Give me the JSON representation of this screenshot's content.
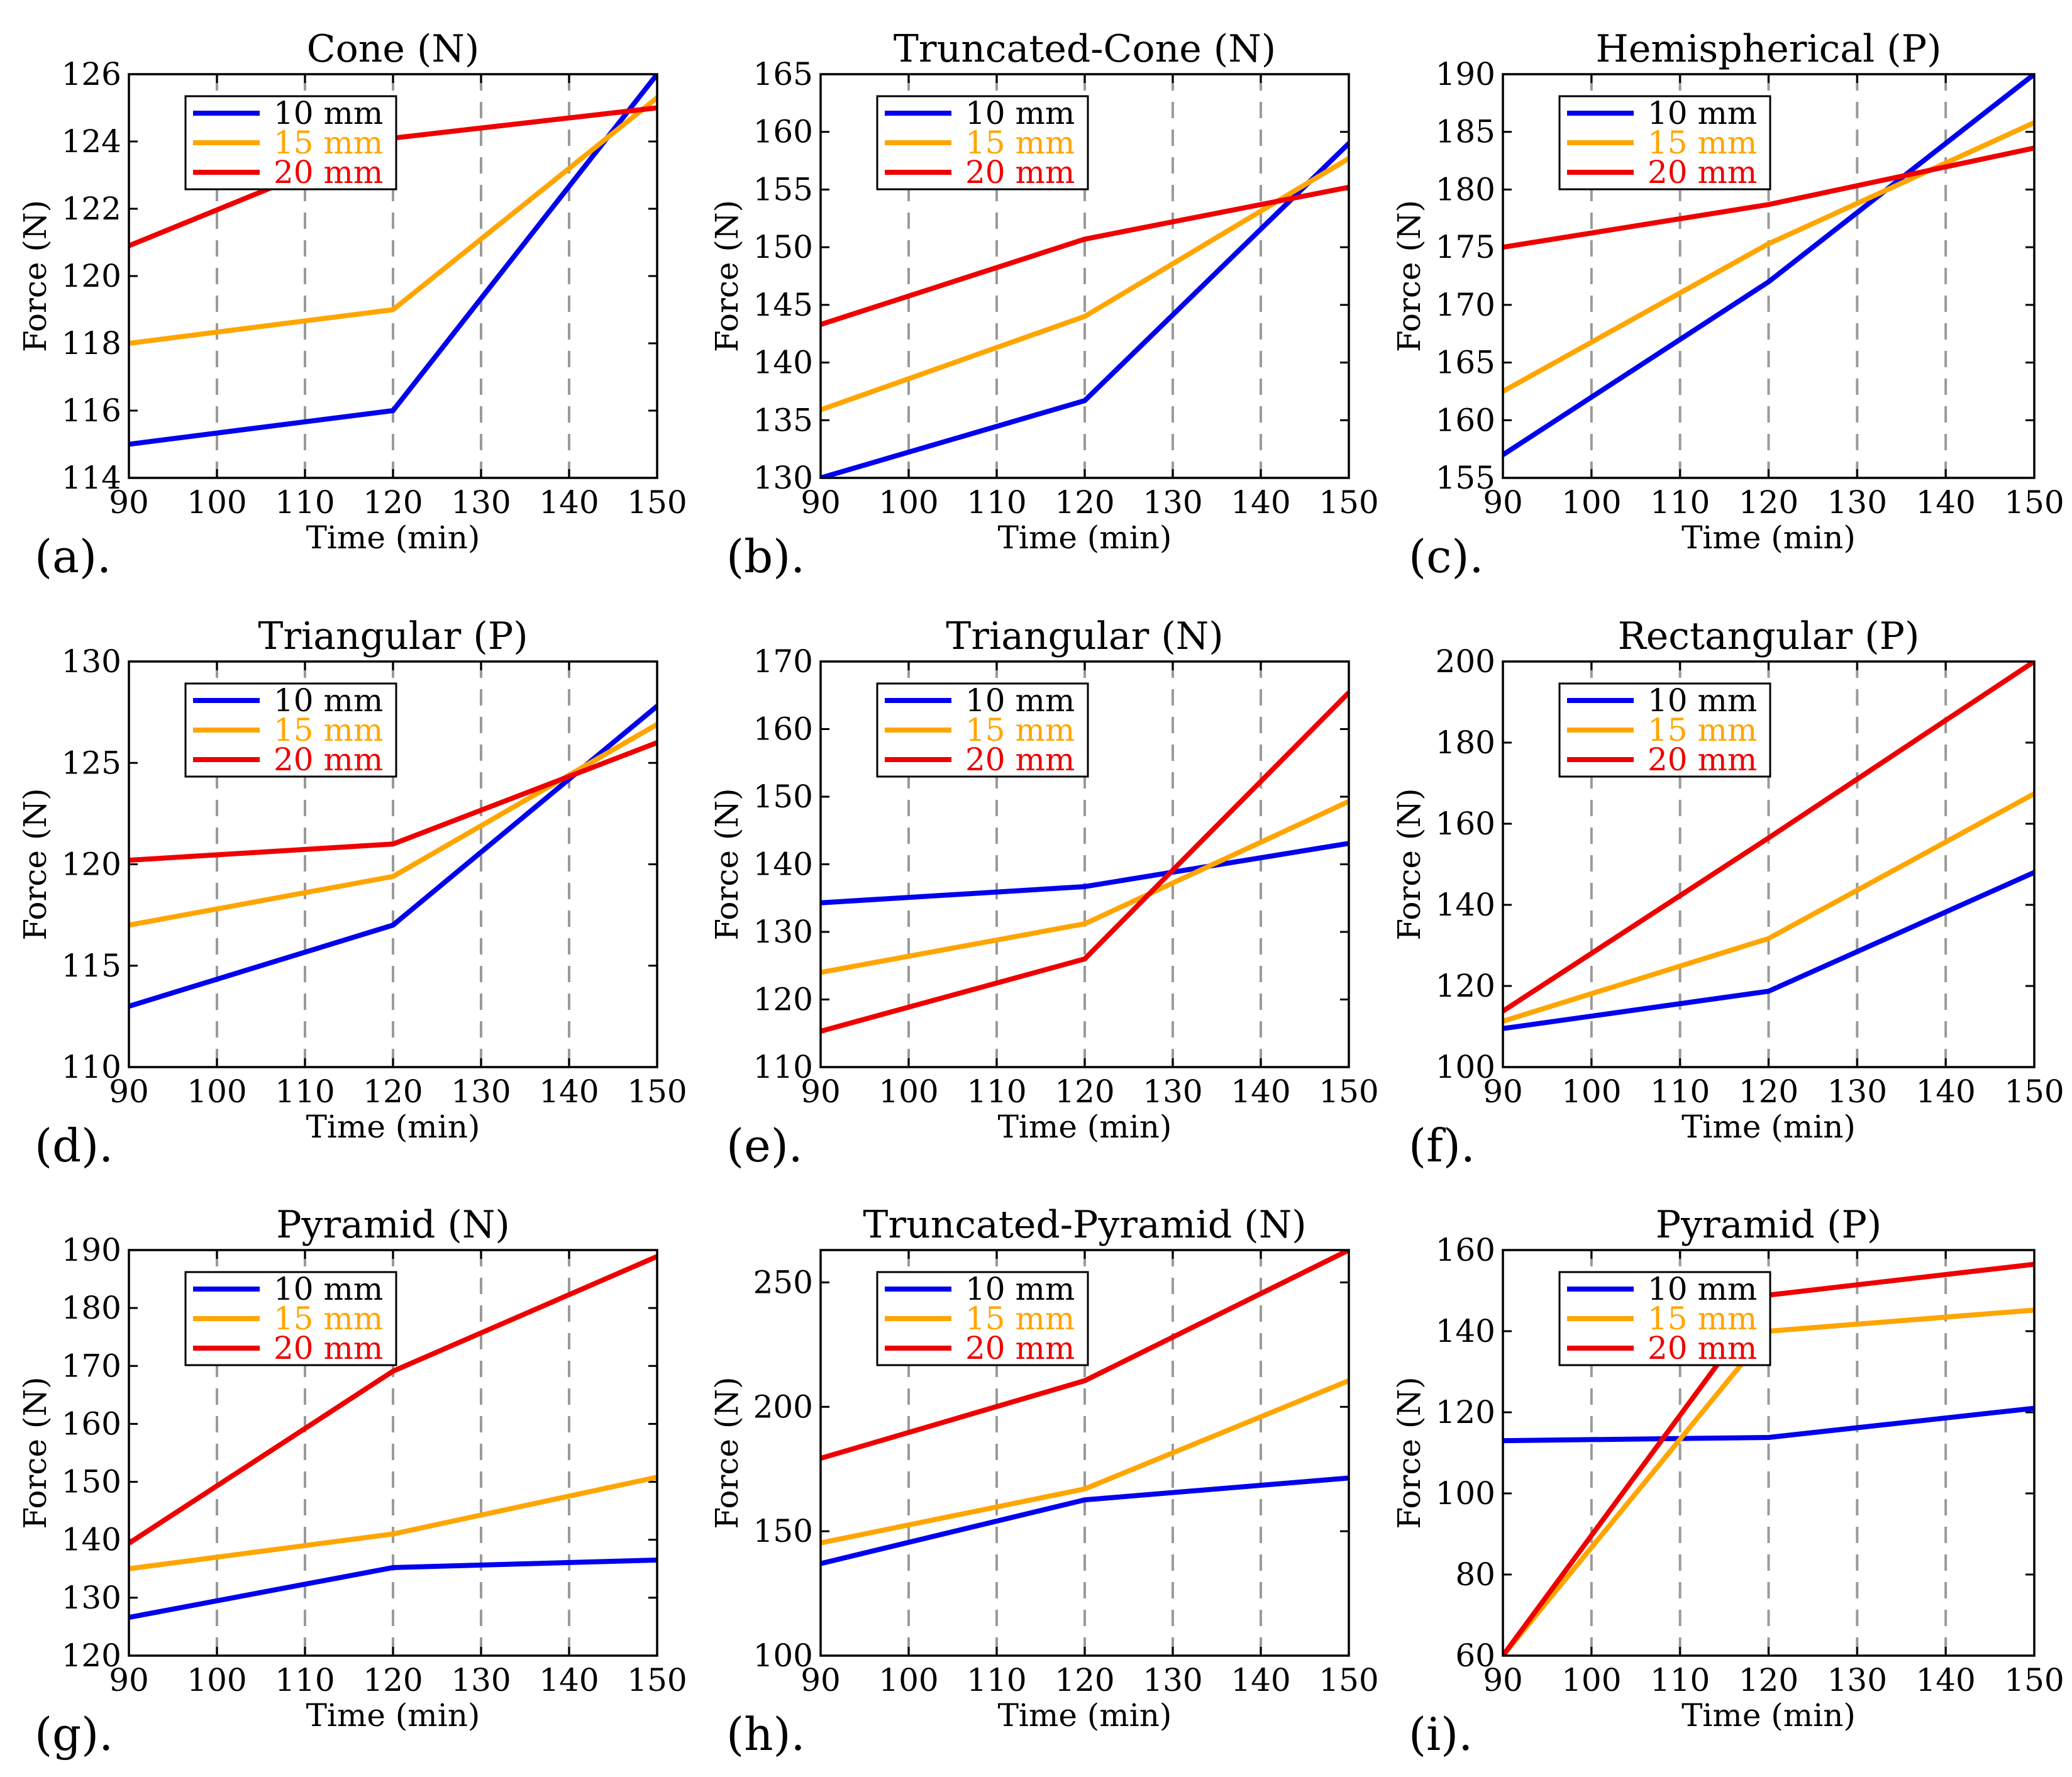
{
  "figure": {
    "xlabel": "Time (min)",
    "ylabel": "Force (N)"
  },
  "series_colors": {
    "10 mm": "#0000ee",
    "15 mm": "#ffa500",
    "20 mm": "#ee0000"
  },
  "chart_data": [
    {
      "type": "line",
      "panel_label": "(a).",
      "title": "Cone (N)",
      "xlabel": "Time (min)",
      "ylabel": "Force (N)",
      "x": [
        90,
        120,
        150
      ],
      "xlim": [
        90,
        150
      ],
      "xticks": [
        90,
        100,
        110,
        120,
        130,
        140,
        150
      ],
      "ylim": [
        114,
        126
      ],
      "yticks": [
        114,
        116,
        118,
        120,
        122,
        124,
        126
      ],
      "grid": "vertical-dashed",
      "legend": "top-left",
      "series": [
        {
          "name": "10 mm",
          "values": [
            115.0,
            116.0,
            126.0
          ]
        },
        {
          "name": "15 mm",
          "values": [
            118.0,
            119.0,
            125.3
          ]
        },
        {
          "name": "20 mm",
          "values": [
            120.9,
            124.1,
            125.0
          ]
        }
      ]
    },
    {
      "type": "line",
      "panel_label": "(b).",
      "title": "Truncated-Cone (N)",
      "xlabel": "Time (min)",
      "ylabel": "Force (N)",
      "x": [
        90,
        120,
        150
      ],
      "xlim": [
        90,
        150
      ],
      "xticks": [
        90,
        100,
        110,
        120,
        130,
        140,
        150
      ],
      "ylim": [
        130,
        165
      ],
      "yticks": [
        130,
        135,
        140,
        145,
        150,
        155,
        160,
        165
      ],
      "grid": "vertical-dashed",
      "legend": "top-left",
      "series": [
        {
          "name": "10 mm",
          "values": [
            130.0,
            136.7,
            159.0
          ]
        },
        {
          "name": "15 mm",
          "values": [
            135.9,
            144.0,
            157.7
          ]
        },
        {
          "name": "20 mm",
          "values": [
            143.3,
            150.7,
            155.2
          ]
        }
      ]
    },
    {
      "type": "line",
      "panel_label": "(c).",
      "title": "Hemispherical (P)",
      "xlabel": "Time (min)",
      "ylabel": "Force (N)",
      "x": [
        90,
        120,
        150
      ],
      "xlim": [
        90,
        150
      ],
      "xticks": [
        90,
        100,
        110,
        120,
        130,
        140,
        150
      ],
      "ylim": [
        155,
        190
      ],
      "yticks": [
        155,
        160,
        165,
        170,
        175,
        180,
        185,
        190
      ],
      "grid": "vertical-dashed",
      "legend": "top-left",
      "series": [
        {
          "name": "10 mm",
          "values": [
            157.0,
            172.0,
            190.0
          ]
        },
        {
          "name": "15 mm",
          "values": [
            162.5,
            175.3,
            185.8
          ]
        },
        {
          "name": "20 mm",
          "values": [
            175.0,
            178.7,
            183.6
          ]
        }
      ]
    },
    {
      "type": "line",
      "panel_label": "(d).",
      "title": "Triangular (P)",
      "xlabel": "Time (min)",
      "ylabel": "Force (N)",
      "x": [
        90,
        120,
        150
      ],
      "xlim": [
        90,
        150
      ],
      "xticks": [
        90,
        100,
        110,
        120,
        130,
        140,
        150
      ],
      "ylim": [
        110,
        130
      ],
      "yticks": [
        110,
        115,
        120,
        125,
        130
      ],
      "grid": "vertical-dashed",
      "legend": "top-left",
      "series": [
        {
          "name": "10 mm",
          "values": [
            113.0,
            117.0,
            127.8
          ]
        },
        {
          "name": "15 mm",
          "values": [
            117.0,
            119.4,
            126.9
          ]
        },
        {
          "name": "20 mm",
          "values": [
            120.2,
            121.0,
            126.0
          ]
        }
      ]
    },
    {
      "type": "line",
      "panel_label": "(e).",
      "title": "Triangular (N)",
      "xlabel": "Time (min)",
      "ylabel": "Force (N)",
      "x": [
        90,
        120,
        150
      ],
      "xlim": [
        90,
        150
      ],
      "xticks": [
        90,
        100,
        110,
        120,
        130,
        140,
        150
      ],
      "ylim": [
        110,
        170
      ],
      "yticks": [
        110,
        120,
        130,
        140,
        150,
        160,
        170
      ],
      "grid": "vertical-dashed",
      "legend": "top-left",
      "series": [
        {
          "name": "10 mm",
          "values": [
            134.3,
            136.7,
            143.1
          ]
        },
        {
          "name": "15 mm",
          "values": [
            124.0,
            131.2,
            149.3
          ]
        },
        {
          "name": "20 mm",
          "values": [
            115.3,
            126.0,
            165.4
          ]
        }
      ]
    },
    {
      "type": "line",
      "panel_label": "(f).",
      "title": "Rectangular (P)",
      "xlabel": "Time (min)",
      "ylabel": "Force (N)",
      "x": [
        90,
        120,
        150
      ],
      "xlim": [
        90,
        150
      ],
      "xticks": [
        90,
        100,
        110,
        120,
        130,
        140,
        150
      ],
      "ylim": [
        100,
        200
      ],
      "yticks": [
        100,
        120,
        140,
        160,
        180,
        200
      ],
      "grid": "vertical-dashed",
      "legend": "top-left",
      "series": [
        {
          "name": "10 mm",
          "values": [
            109.5,
            118.7,
            148.0
          ]
        },
        {
          "name": "15 mm",
          "values": [
            111.3,
            131.7,
            167.4
          ]
        },
        {
          "name": "20 mm",
          "values": [
            113.8,
            156.5,
            200.0
          ]
        }
      ]
    },
    {
      "type": "line",
      "panel_label": "(g).",
      "title": "Pyramid (N)",
      "xlabel": "Time (min)",
      "ylabel": "Force (N)",
      "x": [
        90,
        120,
        150
      ],
      "xlim": [
        90,
        150
      ],
      "xticks": [
        90,
        100,
        110,
        120,
        130,
        140,
        150
      ],
      "ylim": [
        120,
        190
      ],
      "yticks": [
        120,
        130,
        140,
        150,
        160,
        170,
        180,
        190
      ],
      "grid": "vertical-dashed",
      "legend": "top-left",
      "series": [
        {
          "name": "10 mm",
          "values": [
            126.6,
            135.2,
            136.5
          ]
        },
        {
          "name": "15 mm",
          "values": [
            135.0,
            141.0,
            150.8
          ]
        },
        {
          "name": "20 mm",
          "values": [
            139.4,
            169.1,
            188.9
          ]
        }
      ]
    },
    {
      "type": "line",
      "panel_label": "(h).",
      "title": "Truncated-Pyramid (N)",
      "xlabel": "Time (min)",
      "ylabel": "Force (N)",
      "x": [
        90,
        120,
        150
      ],
      "xlim": [
        90,
        150
      ],
      "xticks": [
        90,
        100,
        110,
        120,
        130,
        140,
        150
      ],
      "ylim": [
        100,
        263
      ],
      "yticks": [
        100,
        150,
        200,
        250
      ],
      "grid": "vertical-dashed",
      "legend": "top-left",
      "series": [
        {
          "name": "10 mm",
          "values": [
            137.0,
            162.6,
            171.4
          ]
        },
        {
          "name": "15 mm",
          "values": [
            145.3,
            167.0,
            210.5
          ]
        },
        {
          "name": "20 mm",
          "values": [
            179.3,
            210.5,
            263.0
          ]
        }
      ]
    },
    {
      "type": "line",
      "panel_label": "(i).",
      "title": "Pyramid (P)",
      "xlabel": "Time (min)",
      "ylabel": "Force (N)",
      "x": [
        90,
        120,
        150
      ],
      "xlim": [
        90,
        150
      ],
      "xticks": [
        90,
        100,
        110,
        120,
        130,
        140,
        150
      ],
      "ylim": [
        60,
        160
      ],
      "yticks": [
        60,
        80,
        100,
        120,
        140,
        160
      ],
      "grid": "vertical-dashed",
      "legend": "top-left",
      "series": [
        {
          "name": "10 mm",
          "values": [
            113.0,
            113.8,
            121.0
          ]
        },
        {
          "name": "15 mm",
          "values": [
            60.0,
            140.0,
            145.2
          ]
        },
        {
          "name": "20 mm",
          "values": [
            60.0,
            148.9,
            156.5
          ]
        }
      ]
    }
  ]
}
